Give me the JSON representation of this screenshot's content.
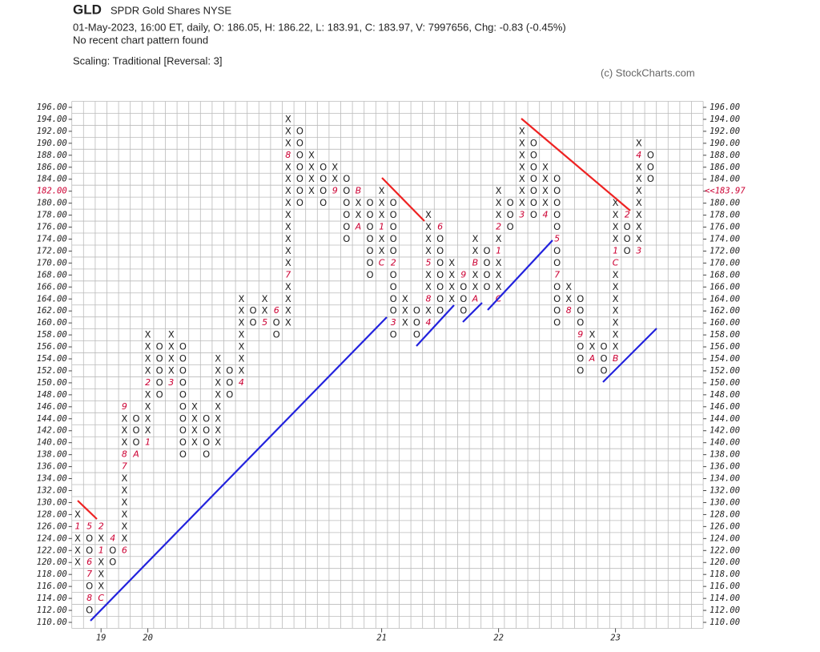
{
  "header": {
    "symbol": "GLD",
    "name": "SPDR Gold Shares  NYSE",
    "quote": "01-May-2023, 16:00 ET, daily, O: 186.05, H: 186.22, L: 183.91, C: 183.97, V: 7997656, Chg: -0.83 (-0.45%)",
    "pattern": "No recent chart pattern found",
    "scaling": "Scaling: Traditional [Reversal: 3]",
    "copyright": "(c) StockCharts.com"
  },
  "chart_data": {
    "type": "pointfigure",
    "x_color": "#222222",
    "o_color": "#222222",
    "marker_color": "#cc0033",
    "ylim": [
      110,
      196
    ],
    "yticks": [
      {
        "value": 110,
        "label": "110.00"
      },
      {
        "value": 112,
        "label": "112.00"
      },
      {
        "value": 114,
        "label": "114.00"
      },
      {
        "value": 116,
        "label": "116.00"
      },
      {
        "value": 118,
        "label": "118.00"
      },
      {
        "value": 120,
        "label": "120.00"
      },
      {
        "value": 122,
        "label": "122.00"
      },
      {
        "value": 124,
        "label": "124.00"
      },
      {
        "value": 126,
        "label": "126.00"
      },
      {
        "value": 128,
        "label": "128.00"
      },
      {
        "value": 130,
        "label": "130.00"
      },
      {
        "value": 132,
        "label": "132.00"
      },
      {
        "value": 134,
        "label": "134.00"
      },
      {
        "value": 136,
        "label": "136.00"
      },
      {
        "value": 138,
        "label": "138.00"
      },
      {
        "value": 140,
        "label": "140.00"
      },
      {
        "value": 142,
        "label": "142.00"
      },
      {
        "value": 144,
        "label": "144.00"
      },
      {
        "value": 146,
        "label": "146.00"
      },
      {
        "value": 148,
        "label": "148.00"
      },
      {
        "value": 150,
        "label": "150.00"
      },
      {
        "value": 152,
        "label": "152.00"
      },
      {
        "value": 154,
        "label": "154.00"
      },
      {
        "value": 156,
        "label": "156.00"
      },
      {
        "value": 158,
        "label": "158.00"
      },
      {
        "value": 160,
        "label": "160.00"
      },
      {
        "value": 162,
        "label": "162.00"
      },
      {
        "value": 164,
        "label": "164.00"
      },
      {
        "value": 166,
        "label": "166.00"
      },
      {
        "value": 168,
        "label": "168.00"
      },
      {
        "value": 170,
        "label": "170.00"
      },
      {
        "value": 172,
        "label": "172.00"
      },
      {
        "value": 174,
        "label": "174.00"
      },
      {
        "value": 176,
        "label": "176.00"
      },
      {
        "value": 178,
        "label": "178.00"
      },
      {
        "value": 180,
        "label": "180.00"
      },
      {
        "value": 182,
        "label": "182.00"
      },
      {
        "value": 184,
        "label": "184.00"
      },
      {
        "value": 186,
        "label": "186.00"
      },
      {
        "value": 188,
        "label": "188.00"
      },
      {
        "value": 190,
        "label": "190.00"
      },
      {
        "value": 192,
        "label": "192.00"
      },
      {
        "value": 194,
        "label": "194.00"
      },
      {
        "value": 196,
        "label": "196.00"
      }
    ],
    "xticks": [
      {
        "value": 2,
        "label": "19"
      },
      {
        "value": 6,
        "label": "20"
      },
      {
        "value": 26,
        "label": "21"
      },
      {
        "value": 36,
        "label": "22"
      },
      {
        "value": 46,
        "label": "23"
      }
    ],
    "last_price": {
      "value": 183.97,
      "label": "<<183.97"
    },
    "columns": [
      {
        "type": "X",
        "low": 120,
        "high": 128,
        "markers": [
          {
            "box": 126,
            "label": "1"
          }
        ]
      },
      {
        "type": "O",
        "low": 112,
        "high": 126,
        "markers": [
          {
            "box": 126,
            "label": "5"
          },
          {
            "box": 120,
            "label": "6"
          },
          {
            "box": 118,
            "label": "7"
          },
          {
            "box": 114,
            "label": "8"
          }
        ]
      },
      {
        "type": "X",
        "low": 114,
        "high": 126,
        "markers": [
          {
            "box": 114,
            "label": "C"
          },
          {
            "box": 122,
            "label": "1"
          },
          {
            "box": 126,
            "label": "2"
          }
        ]
      },
      {
        "type": "O",
        "low": 120,
        "high": 124,
        "markers": [
          {
            "box": 124,
            "label": "4"
          }
        ]
      },
      {
        "type": "X",
        "low": 122,
        "high": 146,
        "markers": [
          {
            "box": 122,
            "label": "6"
          },
          {
            "box": 136,
            "label": "7"
          },
          {
            "box": 138,
            "label": "8"
          },
          {
            "box": 146,
            "label": "9"
          }
        ]
      },
      {
        "type": "O",
        "low": 138,
        "high": 144,
        "markers": [
          {
            "box": 138,
            "label": "A"
          }
        ]
      },
      {
        "type": "X",
        "low": 140,
        "high": 158,
        "markers": [
          {
            "box": 140,
            "label": "1"
          },
          {
            "box": 150,
            "label": "2"
          }
        ]
      },
      {
        "type": "O",
        "low": 148,
        "high": 156
      },
      {
        "type": "X",
        "low": 150,
        "high": 158,
        "markers": [
          {
            "box": 150,
            "label": "3"
          }
        ]
      },
      {
        "type": "O",
        "low": 138,
        "high": 156
      },
      {
        "type": "X",
        "low": 140,
        "high": 146
      },
      {
        "type": "O",
        "low": 138,
        "high": 144
      },
      {
        "type": "X",
        "low": 140,
        "high": 154
      },
      {
        "type": "O",
        "low": 148,
        "high": 152
      },
      {
        "type": "X",
        "low": 150,
        "high": 164,
        "markers": [
          {
            "box": 150,
            "label": "4"
          }
        ]
      },
      {
        "type": "O",
        "low": 160,
        "high": 162
      },
      {
        "type": "X",
        "low": 160,
        "high": 164,
        "markers": [
          {
            "box": 160,
            "label": "5"
          }
        ]
      },
      {
        "type": "O",
        "low": 158,
        "high": 162,
        "markers": [
          {
            "box": 162,
            "label": "6"
          }
        ]
      },
      {
        "type": "X",
        "low": 160,
        "high": 194,
        "markers": [
          {
            "box": 168,
            "label": "7"
          },
          {
            "box": 188,
            "label": "8"
          }
        ]
      },
      {
        "type": "O",
        "low": 180,
        "high": 192
      },
      {
        "type": "X",
        "low": 182,
        "high": 188
      },
      {
        "type": "O",
        "low": 180,
        "high": 186
      },
      {
        "type": "X",
        "low": 182,
        "high": 186,
        "markers": [
          {
            "box": 182,
            "label": "9"
          }
        ]
      },
      {
        "type": "O",
        "low": 174,
        "high": 184
      },
      {
        "type": "X",
        "low": 176,
        "high": 182,
        "markers": [
          {
            "box": 176,
            "label": "A"
          },
          {
            "box": 182,
            "label": "B"
          }
        ]
      },
      {
        "type": "O",
        "low": 168,
        "high": 180
      },
      {
        "type": "X",
        "low": 170,
        "high": 182,
        "markers": [
          {
            "box": 170,
            "label": "C"
          },
          {
            "box": 176,
            "label": "1"
          }
        ]
      },
      {
        "type": "O",
        "low": 158,
        "high": 180,
        "markers": [
          {
            "box": 170,
            "label": "2"
          },
          {
            "box": 160,
            "label": "3"
          }
        ]
      },
      {
        "type": "X",
        "low": 160,
        "high": 164
      },
      {
        "type": "O",
        "low": 158,
        "high": 162
      },
      {
        "type": "X",
        "low": 160,
        "high": 178,
        "markers": [
          {
            "box": 160,
            "label": "4"
          },
          {
            "box": 164,
            "label": "8"
          },
          {
            "box": 170,
            "label": "5"
          }
        ]
      },
      {
        "type": "O",
        "low": 162,
        "high": 176,
        "markers": [
          {
            "box": 176,
            "label": "6"
          }
        ]
      },
      {
        "type": "X",
        "low": 164,
        "high": 170
      },
      {
        "type": "O",
        "low": 162,
        "high": 168,
        "markers": [
          {
            "box": 168,
            "label": "9"
          }
        ]
      },
      {
        "type": "X",
        "low": 164,
        "high": 174,
        "markers": [
          {
            "box": 164,
            "label": "A"
          },
          {
            "box": 170,
            "label": "B"
          }
        ]
      },
      {
        "type": "O",
        "low": 166,
        "high": 172
      },
      {
        "type": "X",
        "low": 164,
        "high": 182,
        "markers": [
          {
            "box": 164,
            "label": "C"
          },
          {
            "box": 172,
            "label": "1"
          },
          {
            "box": 176,
            "label": "2"
          }
        ]
      },
      {
        "type": "O",
        "low": 176,
        "high": 180
      },
      {
        "type": "X",
        "low": 178,
        "high": 192,
        "markers": [
          {
            "box": 178,
            "label": "3"
          }
        ]
      },
      {
        "type": "O",
        "low": 178,
        "high": 190
      },
      {
        "type": "X",
        "low": 178,
        "high": 186,
        "markers": [
          {
            "box": 178,
            "label": "4"
          }
        ]
      },
      {
        "type": "O",
        "low": 160,
        "high": 184,
        "markers": [
          {
            "box": 174,
            "label": "5"
          },
          {
            "box": 168,
            "label": "7"
          }
        ]
      },
      {
        "type": "X",
        "low": 162,
        "high": 166,
        "markers": [
          {
            "box": 162,
            "label": "8"
          }
        ]
      },
      {
        "type": "O",
        "low": 152,
        "high": 164,
        "markers": [
          {
            "box": 158,
            "label": "9"
          }
        ]
      },
      {
        "type": "X",
        "low": 154,
        "high": 158,
        "markers": [
          {
            "box": 154,
            "label": "A"
          }
        ]
      },
      {
        "type": "O",
        "low": 152,
        "high": 156
      },
      {
        "type": "X",
        "low": 154,
        "high": 180,
        "markers": [
          {
            "box": 154,
            "label": "B"
          },
          {
            "box": 170,
            "label": "C"
          },
          {
            "box": 172,
            "label": "1"
          }
        ]
      },
      {
        "type": "O",
        "low": 172,
        "high": 178,
        "markers": [
          {
            "box": 178,
            "label": "2"
          }
        ]
      },
      {
        "type": "X",
        "low": 172,
        "high": 190,
        "markers": [
          {
            "box": 172,
            "label": "3"
          },
          {
            "box": 188,
            "label": "4"
          }
        ]
      },
      {
        "type": "O",
        "low": 184,
        "high": 188
      }
    ]
  }
}
